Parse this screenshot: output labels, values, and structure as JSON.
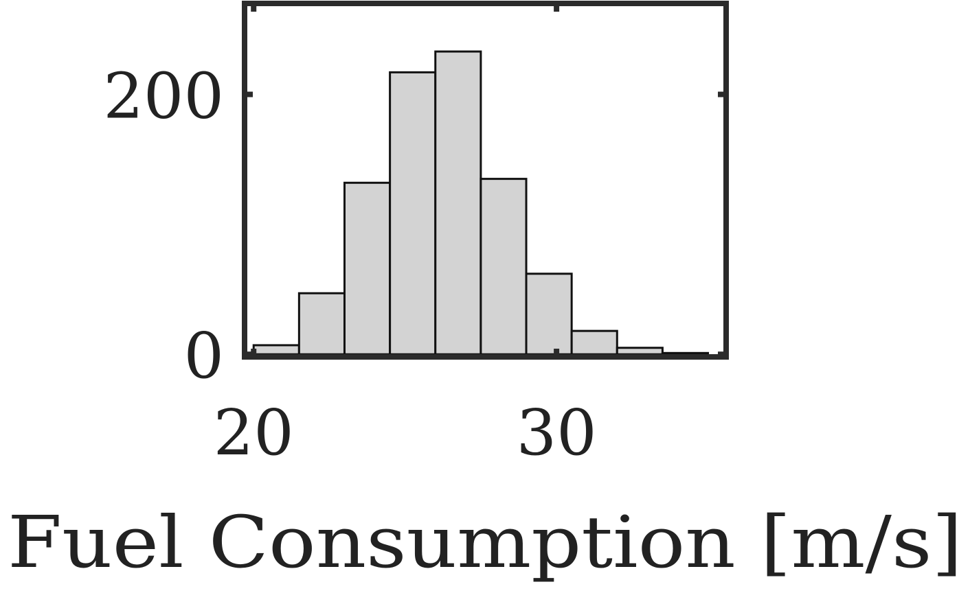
{
  "chart_data": {
    "type": "bar",
    "subtype": "histogram",
    "xlabel": "Fuel Consumption [m/s]",
    "ylabel": "",
    "title": "",
    "xlim": [
      19.7,
      35.6
    ],
    "ylim": [
      -2,
      270
    ],
    "x_ticks": [
      20,
      30
    ],
    "y_ticks": [
      0,
      200
    ],
    "grid": false,
    "legend": "none",
    "bin_edges": [
      20.0,
      21.5,
      23.0,
      24.5,
      26.0,
      27.5,
      29.0,
      30.5,
      32.0,
      33.5,
      35.0
    ],
    "values": [
      7,
      47,
      132,
      217,
      233,
      135,
      62,
      18,
      5,
      1
    ],
    "colors": {
      "bar_fill": "#d3d3d3",
      "bar_stroke": "#111111",
      "axes": "#2b2b2b",
      "text": "#222222"
    }
  }
}
